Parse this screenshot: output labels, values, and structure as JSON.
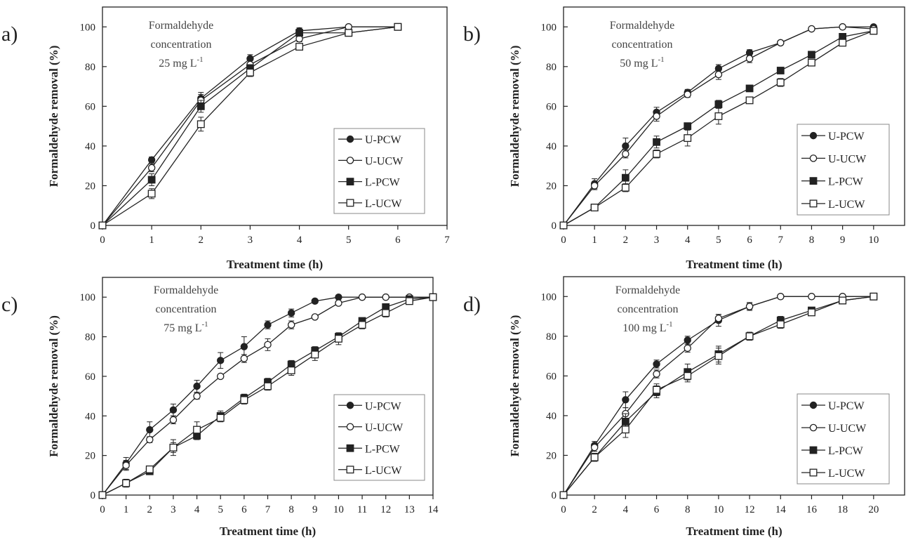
{
  "figure": {
    "background": "#ffffff",
    "ink": "#222222"
  },
  "chart_data": [
    {
      "type": "line",
      "panel_label": "a)",
      "annotation": [
        "Formaldehyde",
        "concentration",
        "25 mg L",
        "-1"
      ],
      "xlabel": "Treatment time (h)",
      "ylabel": "Formaldehyde removal (%)",
      "xlim": [
        0,
        7
      ],
      "ylim": [
        0,
        110
      ],
      "xticks": [
        0,
        1,
        2,
        3,
        4,
        5,
        6,
        7
      ],
      "yticks": [
        0,
        20,
        40,
        60,
        80,
        100
      ],
      "legend_position": "bottom-right",
      "x": [
        0,
        1,
        2,
        3,
        4,
        5,
        6
      ],
      "series": [
        {
          "name": "U-PCW",
          "marker": "filled-circle",
          "values": [
            0,
            33,
            64,
            84,
            98,
            100,
            100
          ],
          "errors": [
            0,
            1.5,
            3,
            2,
            1.5,
            0,
            0
          ]
        },
        {
          "name": "U-UCW",
          "marker": "open-circle",
          "values": [
            0,
            29,
            63,
            81,
            94,
            100,
            100
          ],
          "errors": [
            0,
            2,
            3,
            2,
            1.5,
            0,
            0
          ]
        },
        {
          "name": "L-PCW",
          "marker": "filled-square",
          "values": [
            0,
            23,
            60,
            79,
            97,
            97,
            100
          ],
          "errors": [
            0,
            3,
            3,
            2,
            1.5,
            1,
            0
          ]
        },
        {
          "name": "L-UCW",
          "marker": "open-square",
          "values": [
            0,
            16,
            51,
            77,
            90,
            97,
            100
          ],
          "errors": [
            0,
            2.5,
            3.5,
            2,
            1.5,
            1,
            0
          ]
        }
      ]
    },
    {
      "type": "line",
      "panel_label": "b)",
      "annotation": [
        "Formaldehyde",
        "concentration",
        "50 mg L",
        "-1"
      ],
      "xlabel": "Treatment time (h)",
      "ylabel": "Formaldehyde removal (%)",
      "xlim": [
        0,
        11
      ],
      "ylim": [
        0,
        110
      ],
      "xticks": [
        0,
        1,
        2,
        3,
        4,
        5,
        6,
        7,
        8,
        9,
        10
      ],
      "yticks": [
        0,
        20,
        40,
        60,
        80,
        100
      ],
      "legend_position": "bottom-right",
      "x": [
        0,
        1,
        2,
        3,
        4,
        5,
        6,
        7,
        8,
        9,
        10
      ],
      "series": [
        {
          "name": "U-PCW",
          "marker": "filled-circle",
          "values": [
            0,
            21,
            40,
            57,
            67,
            79,
            87,
            92,
            99,
            100,
            100
          ],
          "errors": [
            0,
            2.5,
            4,
            2.5,
            1.5,
            2,
            1.5,
            1,
            0.5,
            0,
            0
          ]
        },
        {
          "name": "U-UCW",
          "marker": "open-circle",
          "values": [
            0,
            20,
            36,
            55,
            66,
            76,
            84,
            92,
            99,
            100,
            99
          ],
          "errors": [
            0,
            2,
            2,
            2.5,
            1.5,
            2.5,
            2,
            1,
            0.5,
            0,
            0.5
          ]
        },
        {
          "name": "L-PCW",
          "marker": "filled-square",
          "values": [
            0,
            9,
            24,
            42,
            50,
            61,
            69,
            78,
            86,
            95,
            98
          ],
          "errors": [
            0,
            1,
            4,
            3,
            1.5,
            2,
            1.5,
            1,
            1,
            1,
            1
          ]
        },
        {
          "name": "L-UCW",
          "marker": "open-square",
          "values": [
            0,
            9,
            19,
            36,
            44,
            55,
            63,
            72,
            82,
            92,
            98
          ],
          "errors": [
            0,
            1,
            2,
            2,
            4,
            4,
            1.5,
            2,
            1.5,
            1,
            1
          ]
        }
      ]
    },
    {
      "type": "line",
      "panel_label": "c)",
      "annotation": [
        "Formaldehyde",
        "concentration",
        "75 mg L",
        "-1"
      ],
      "xlabel": "Treatment time (h)",
      "ylabel": "Formaldehyde removal (%)",
      "xlim": [
        0,
        14
      ],
      "ylim": [
        0,
        110
      ],
      "xticks": [
        0,
        1,
        2,
        3,
        4,
        5,
        6,
        7,
        8,
        9,
        10,
        11,
        12,
        13,
        14
      ],
      "yticks": [
        0,
        20,
        40,
        60,
        80,
        100
      ],
      "legend_position": "bottom-right",
      "x": [
        0,
        1,
        2,
        3,
        4,
        5,
        6,
        7,
        8,
        9,
        10,
        11,
        12,
        13,
        14
      ],
      "series": [
        {
          "name": "U-PCW",
          "marker": "filled-circle",
          "values": [
            0,
            16,
            33,
            43,
            55,
            68,
            75,
            86,
            92,
            98,
            100,
            100,
            100,
            100,
            100
          ],
          "errors": [
            0,
            3,
            4,
            3,
            3,
            4,
            5,
            2,
            2,
            1,
            0.5,
            0,
            0,
            0,
            0
          ]
        },
        {
          "name": "U-UCW",
          "marker": "open-circle",
          "values": [
            0,
            15,
            28,
            38,
            50,
            60,
            69,
            76,
            86,
            90,
            97,
            100,
            100,
            100,
            100
          ],
          "errors": [
            0,
            2.5,
            1.5,
            2,
            1.5,
            1,
            2,
            3,
            2,
            1,
            1,
            0,
            0,
            0,
            0
          ]
        },
        {
          "name": "L-PCW",
          "marker": "filled-square",
          "values": [
            0,
            6,
            12,
            24,
            30,
            40,
            49,
            57,
            66,
            73,
            80,
            88,
            95,
            99,
            100
          ],
          "errors": [
            0,
            1,
            1.5,
            2.5,
            2,
            2.5,
            2,
            2,
            2,
            2,
            2,
            1.5,
            1.5,
            1,
            0
          ]
        },
        {
          "name": "L-UCW",
          "marker": "open-square",
          "values": [
            0,
            6,
            13,
            24,
            33,
            39,
            48,
            55,
            63,
            71,
            79,
            86,
            92,
            98,
            100
          ],
          "errors": [
            0,
            2,
            1.5,
            4,
            4,
            2,
            2,
            2,
            2.5,
            3,
            3,
            2,
            2,
            1.5,
            0
          ]
        }
      ]
    },
    {
      "type": "line",
      "panel_label": "d)",
      "annotation": [
        "Formaldehyde",
        "concentration",
        "100 mg L",
        "-1"
      ],
      "xlabel": "Treatment time (h)",
      "ylabel": "Formaldehyde removal (%)",
      "xlim": [
        0,
        22
      ],
      "ylim": [
        0,
        110
      ],
      "xticks": [
        0,
        2,
        4,
        6,
        8,
        10,
        12,
        14,
        16,
        18,
        20
      ],
      "yticks": [
        0,
        20,
        40,
        60,
        80,
        100
      ],
      "legend_position": "bottom-right",
      "x": [
        0,
        2,
        4,
        6,
        8,
        10,
        12,
        14,
        16,
        18,
        20
      ],
      "series": [
        {
          "name": "U-PCW",
          "marker": "filled-circle",
          "values": [
            0,
            25,
            48,
            66,
            78,
            88,
            95,
            100,
            100,
            100,
            100
          ],
          "errors": [
            0,
            2,
            4,
            2,
            2,
            3,
            2,
            1,
            0,
            0,
            0
          ]
        },
        {
          "name": "U-UCW",
          "marker": "open-circle",
          "values": [
            0,
            24,
            41,
            61,
            74,
            89,
            95,
            100,
            100,
            100,
            100
          ],
          "errors": [
            0,
            2,
            3,
            2,
            2,
            2,
            1.5,
            1,
            0,
            0,
            0
          ]
        },
        {
          "name": "L-PCW",
          "marker": "filled-square",
          "values": [
            0,
            19,
            37,
            52,
            62,
            71,
            80,
            88,
            93,
            98,
            100
          ],
          "errors": [
            0,
            2,
            4,
            3,
            4,
            4,
            2,
            2,
            1.5,
            1,
            0
          ]
        },
        {
          "name": "L-UCW",
          "marker": "open-square",
          "values": [
            0,
            19,
            33,
            53,
            60,
            70,
            80,
            86,
            92,
            98,
            100
          ],
          "errors": [
            0,
            2,
            4,
            3,
            3,
            4,
            2,
            2,
            1.5,
            1,
            0
          ]
        }
      ]
    }
  ]
}
